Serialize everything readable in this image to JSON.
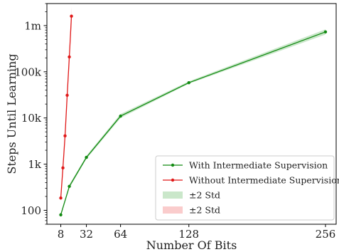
{
  "chart_data": {
    "type": "line",
    "xlabel": "Number Of Bits",
    "ylabel": "Steps Until Learning",
    "xlim": [
      -5,
      266
    ],
    "ylim": [
      50,
      3000000
    ],
    "yscale": "log",
    "grid": false,
    "legend_position": "bottom-right",
    "x_ticks": [
      8,
      32,
      64,
      128,
      256
    ],
    "y_ticks": [
      {
        "value": 100,
        "label": "100"
      },
      {
        "value": 1000,
        "label": "1k"
      },
      {
        "value": 10000,
        "label": "10k"
      },
      {
        "value": 100000,
        "label": "100k"
      },
      {
        "value": 1000000,
        "label": "1m"
      }
    ],
    "series": [
      {
        "name": "With Intermediate Supervision",
        "color": "#128a12",
        "band_color": "#9fd49f",
        "x": [
          8,
          16,
          32,
          64,
          128,
          256
        ],
        "y": [
          80,
          330,
          1400,
          11000,
          58000,
          730000
        ],
        "lower": [
          75,
          300,
          1300,
          10000,
          55000,
          640000
        ],
        "upper": [
          86,
          360,
          1520,
          12200,
          62000,
          830000
        ]
      },
      {
        "name": "Without Intermediate Supervision",
        "color": "#e01818",
        "band_color": "#f5a3a3",
        "x": [
          8,
          10,
          12,
          14,
          16,
          18
        ],
        "y": [
          185,
          830,
          4100,
          31000,
          210000,
          1600000
        ],
        "lower": [
          160,
          760,
          3800,
          28000,
          175000,
          1000000
        ],
        "upper": [
          210,
          900,
          4400,
          35000,
          260000,
          2600000
        ]
      }
    ],
    "legend": [
      {
        "kind": "line",
        "series": 0,
        "label": "With Intermediate Supervision"
      },
      {
        "kind": "line",
        "series": 1,
        "label": "Without Intermediate Supervision"
      },
      {
        "kind": "band",
        "series": 0,
        "label": "±2 Std"
      },
      {
        "kind": "band",
        "series": 1,
        "label": "±2 Std"
      }
    ]
  }
}
